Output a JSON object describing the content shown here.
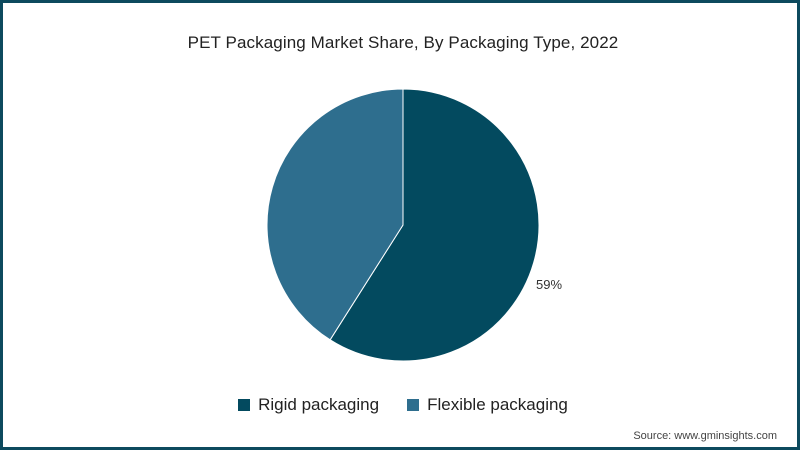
{
  "chart_data": {
    "type": "pie",
    "title": "PET Packaging Market Share, By Packaging Type, 2022",
    "categories": [
      "Rigid packaging",
      "Flexible packaging"
    ],
    "values": [
      59,
      41
    ],
    "colors": [
      "#034a5f",
      "#2e6e8e"
    ],
    "data_labels": [
      "59%",
      ""
    ],
    "legend_position": "bottom",
    "start_angle": "top, clockwise"
  },
  "labels": {
    "rigid_pct": "59%"
  },
  "legend": {
    "items": [
      {
        "label": "Rigid packaging",
        "color": "#034a5f"
      },
      {
        "label": "Flexible packaging",
        "color": "#2e6e8e"
      }
    ]
  },
  "source": "Source: www.gminsights.com"
}
